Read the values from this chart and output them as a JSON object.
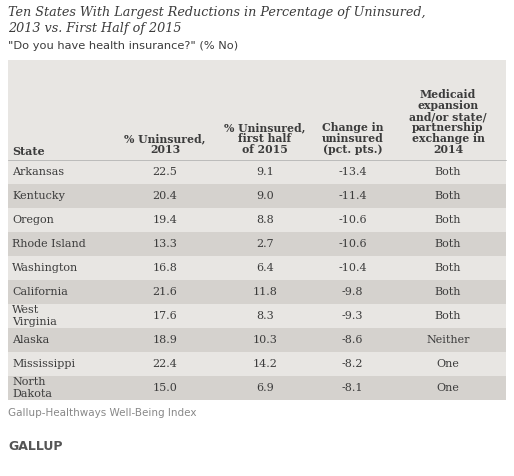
{
  "title_line1": "Ten States With Largest Reductions in Percentage of Uninsured,",
  "title_line2": "2013 vs. First Half of 2015",
  "subtitle": "\"Do you have health insurance?\" (% No)",
  "col_headers_line1": [
    "",
    "% Uninsured,",
    "% Uninsured,",
    "Change in",
    "Medicaid"
  ],
  "col_headers_line2": [
    "",
    "2013",
    "first half",
    "uninsured",
    "expansion"
  ],
  "col_headers_line3": [
    "State",
    "",
    "of 2015",
    "(pct. pts.)",
    "and/or state/"
  ],
  "col_headers_line4": [
    "",
    "",
    "",
    "",
    "partnership"
  ],
  "col_headers_line5": [
    "",
    "",
    "",
    "",
    "exchange in"
  ],
  "col_headers_line6": [
    "",
    "",
    "",
    "",
    "2014"
  ],
  "rows": [
    [
      "Arkansas",
      "22.5",
      "9.1",
      "-13.4",
      "Both"
    ],
    [
      "Kentucky",
      "20.4",
      "9.0",
      "-11.4",
      "Both"
    ],
    [
      "Oregon",
      "19.4",
      "8.8",
      "-10.6",
      "Both"
    ],
    [
      "Rhode Island",
      "13.3",
      "2.7",
      "-10.6",
      "Both"
    ],
    [
      "Washington",
      "16.8",
      "6.4",
      "-10.4",
      "Both"
    ],
    [
      "California",
      "21.6",
      "11.8",
      "-9.8",
      "Both"
    ],
    [
      "West\nVirginia",
      "17.6",
      "8.3",
      "-9.3",
      "Both"
    ],
    [
      "Alaska",
      "18.9",
      "10.3",
      "-8.6",
      "Neither"
    ],
    [
      "Mississippi",
      "22.4",
      "14.2",
      "-8.2",
      "One"
    ],
    [
      "North\nDakota",
      "15.0",
      "6.9",
      "-8.1",
      "One"
    ]
  ],
  "footer": "Gallup-Healthways Well-Being Index",
  "brand": "GALLUP",
  "bg_light": "#e8e6e3",
  "bg_dark": "#d5d2ce",
  "white": "#ffffff",
  "title_color": "#3c3c3c",
  "text_color": "#3c3c3c",
  "footer_color": "#888888",
  "brand_color": "#555555"
}
